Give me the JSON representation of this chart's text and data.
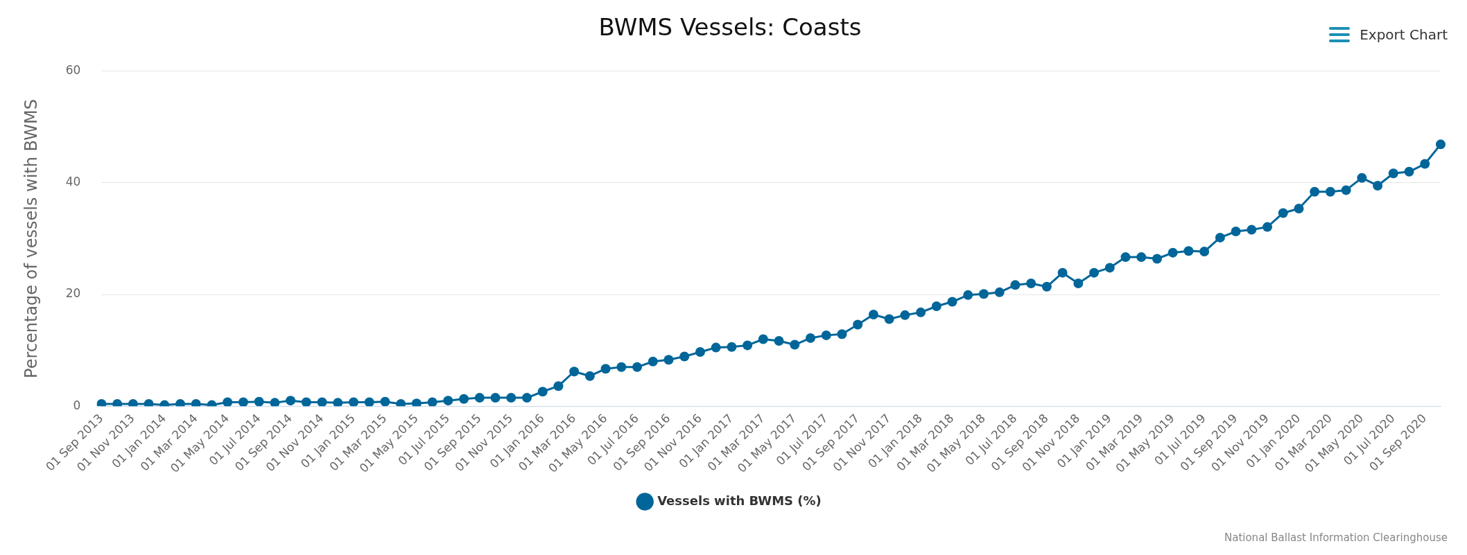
{
  "chart_data": {
    "type": "line",
    "title": "BWMS Vessels: Coasts",
    "ylabel": "Percentage of vessels with BWMS",
    "categories": [
      "01 Sep 2013",
      null,
      "01 Nov 2013",
      null,
      "01 Jan 2014",
      null,
      "01 Mar 2014",
      null,
      "01 May 2014",
      null,
      "01 Jul 2014",
      null,
      "01 Sep 2014",
      null,
      "01 Nov 2014",
      null,
      "01 Jan 2015",
      null,
      "01 Mar 2015",
      null,
      "01 May 2015",
      null,
      "01 Jul 2015",
      null,
      "01 Sep 2015",
      null,
      "01 Nov 2015",
      null,
      "01 Jan 2016",
      null,
      "01 Mar 2016",
      null,
      "01 May 2016",
      null,
      "01 Jul 2016",
      null,
      "01 Sep 2016",
      null,
      "01 Nov 2016",
      null,
      "01 Jan 2017",
      null,
      "01 Mar 2017",
      null,
      "01 May 2017",
      null,
      "01 Jul 2017",
      null,
      "01 Sep 2017",
      null,
      "01 Nov 2017",
      null,
      "01 Jan 2018",
      null,
      "01 Mar 2018",
      null,
      "01 May 2018",
      null,
      "01 Jul 2018",
      null,
      "01 Sep 2018",
      null,
      "01 Nov 2018",
      null,
      "01 Jan 2019",
      null,
      "01 Mar 2019",
      null,
      "01 May 2019",
      null,
      "01 Jul 2019",
      null,
      "01 Sep 2019",
      null,
      "01 Nov 2019",
      null,
      "01 Jan 2020",
      null,
      "01 Mar 2020",
      null,
      "01 May 2020",
      null,
      "01 Jul 2020",
      null,
      "01 Sep 2020",
      null
    ],
    "series": [
      {
        "name": "Vessels with BWMS (%)",
        "color": "#006699",
        "values": [
          0.4,
          0.4,
          0.4,
          0.4,
          0.2,
          0.4,
          0.4,
          0.2,
          0.7,
          0.7,
          0.8,
          0.6,
          1.0,
          0.7,
          0.7,
          0.6,
          0.7,
          0.7,
          0.8,
          0.4,
          0.5,
          0.7,
          1.0,
          1.3,
          1.5,
          1.5,
          1.5,
          1.5,
          2.6,
          3.6,
          6.2,
          5.4,
          6.7,
          7.0,
          7.0,
          8.0,
          8.3,
          8.9,
          9.7,
          10.5,
          10.6,
          10.9,
          12.0,
          11.7,
          11.0,
          12.2,
          12.7,
          12.9,
          14.6,
          16.4,
          15.6,
          16.3,
          16.8,
          17.9,
          18.7,
          19.9,
          20.1,
          20.4,
          21.7,
          22.0,
          21.4,
          23.9,
          22.0,
          23.9,
          24.8,
          26.7,
          26.7,
          26.4,
          27.5,
          27.8,
          27.7,
          30.2,
          31.3,
          31.6,
          32.1,
          34.6,
          35.4,
          38.4,
          38.4,
          38.7,
          40.9,
          39.5,
          41.7,
          42.0,
          43.4,
          46.9
        ]
      }
    ],
    "ylim": [
      0,
      60
    ],
    "yticks": [
      0,
      20,
      40,
      60
    ],
    "grid": "y",
    "legend": "bottom",
    "marker": "circle",
    "line_style": "solid",
    "annotations": [
      "Export Chart",
      "National Ballast Information Clearinghouse"
    ]
  }
}
